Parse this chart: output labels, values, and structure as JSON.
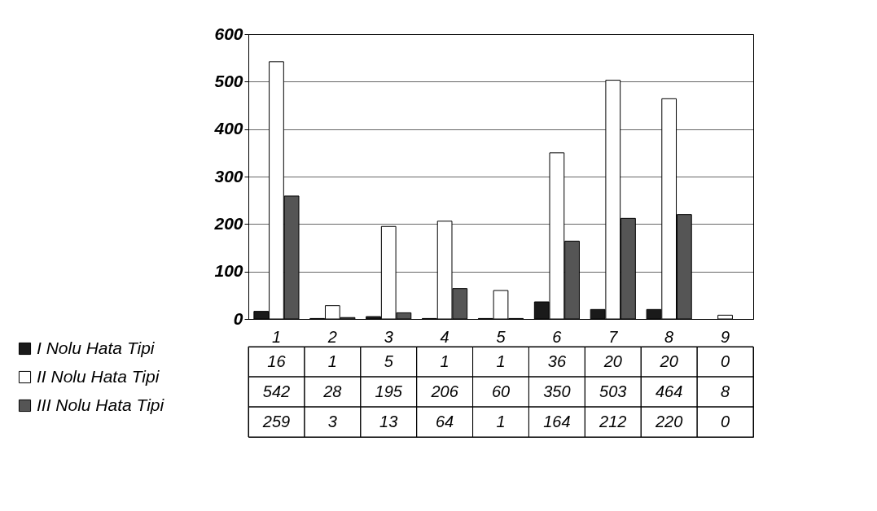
{
  "chart_data": {
    "type": "bar",
    "categories": [
      "1",
      "2",
      "3",
      "4",
      "5",
      "6",
      "7",
      "8",
      "9"
    ],
    "series": [
      {
        "name": "I Nolu Hata Tipi",
        "color": "#1a1a1a",
        "values": [
          16,
          1,
          5,
          1,
          1,
          36,
          20,
          20,
          0
        ]
      },
      {
        "name": "II Nolu Hata Tipi",
        "color": "#ffffff",
        "values": [
          542,
          28,
          195,
          206,
          60,
          350,
          503,
          464,
          8
        ]
      },
      {
        "name": "III Nolu Hata Tipi",
        "color": "#555555",
        "values": [
          259,
          3,
          13,
          64,
          1,
          164,
          212,
          220,
          0
        ]
      }
    ],
    "ylim": [
      0,
      600
    ],
    "yticks": [
      0,
      100,
      200,
      300,
      400,
      500,
      600
    ],
    "grid": "y",
    "legend": "bottom left",
    "data_labels": true
  }
}
